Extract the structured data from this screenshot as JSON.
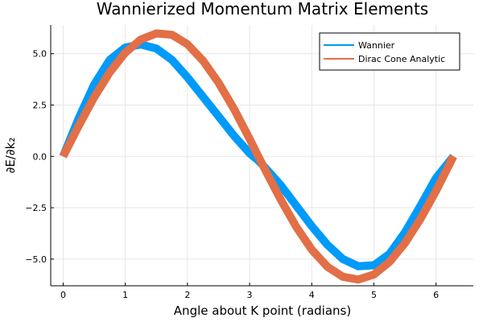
{
  "chart_data": {
    "type": "line",
    "title": "Wannierized Momentum Matrix Elements",
    "xlabel": "Angle about K point (radians)",
    "ylabel": "∂E/∂k₂",
    "xlim": [
      -0.2,
      6.6
    ],
    "ylim": [
      -6.3,
      6.4
    ],
    "xticks": [
      0,
      1,
      2,
      3,
      4,
      5,
      6
    ],
    "xtick_labels": [
      "0",
      "1",
      "2",
      "3",
      "4",
      "5",
      "6"
    ],
    "yticks": [
      -5.0,
      -2.5,
      0.0,
      2.5,
      5.0
    ],
    "ytick_labels": [
      "−5.0",
      "−2.5",
      "0.0",
      "2.5",
      "5.0"
    ],
    "grid": true,
    "legend_position": "top-right",
    "series": [
      {
        "name": "Wannier",
        "color": "#009af9",
        "x": [
          0.0,
          0.25,
          0.5,
          0.75,
          1.0,
          1.25,
          1.5,
          1.75,
          2.0,
          2.25,
          2.5,
          2.75,
          3.0,
          3.14,
          3.25,
          3.5,
          3.75,
          4.0,
          4.25,
          4.5,
          4.75,
          5.0,
          5.25,
          5.5,
          5.75,
          6.0,
          6.28
        ],
        "y": [
          0.0,
          1.85,
          3.5,
          4.7,
          5.3,
          5.45,
          5.25,
          4.7,
          3.85,
          2.9,
          1.95,
          1.0,
          0.15,
          -0.2,
          -0.55,
          -1.4,
          -2.4,
          -3.4,
          -4.3,
          -5.0,
          -5.35,
          -5.3,
          -4.75,
          -3.7,
          -2.4,
          -1.05,
          0.0
        ]
      },
      {
        "name": "Dirac Cone Analytic",
        "color": "#e26f46",
        "x": [
          0.0,
          0.25,
          0.5,
          0.75,
          1.0,
          1.25,
          1.5,
          1.75,
          2.0,
          2.25,
          2.5,
          2.75,
          3.0,
          3.14,
          3.25,
          3.5,
          3.75,
          4.0,
          4.25,
          4.5,
          4.75,
          5.0,
          5.25,
          5.5,
          5.75,
          6.0,
          6.28
        ],
        "y": [
          0.0,
          1.48,
          2.88,
          4.09,
          5.05,
          5.69,
          5.99,
          5.92,
          5.46,
          4.66,
          3.59,
          2.3,
          0.85,
          0.0,
          -0.65,
          -2.1,
          -3.43,
          -4.54,
          -5.37,
          -5.86,
          -6.0,
          -5.75,
          -5.14,
          -4.22,
          -3.04,
          -1.68,
          0.0
        ]
      }
    ]
  }
}
